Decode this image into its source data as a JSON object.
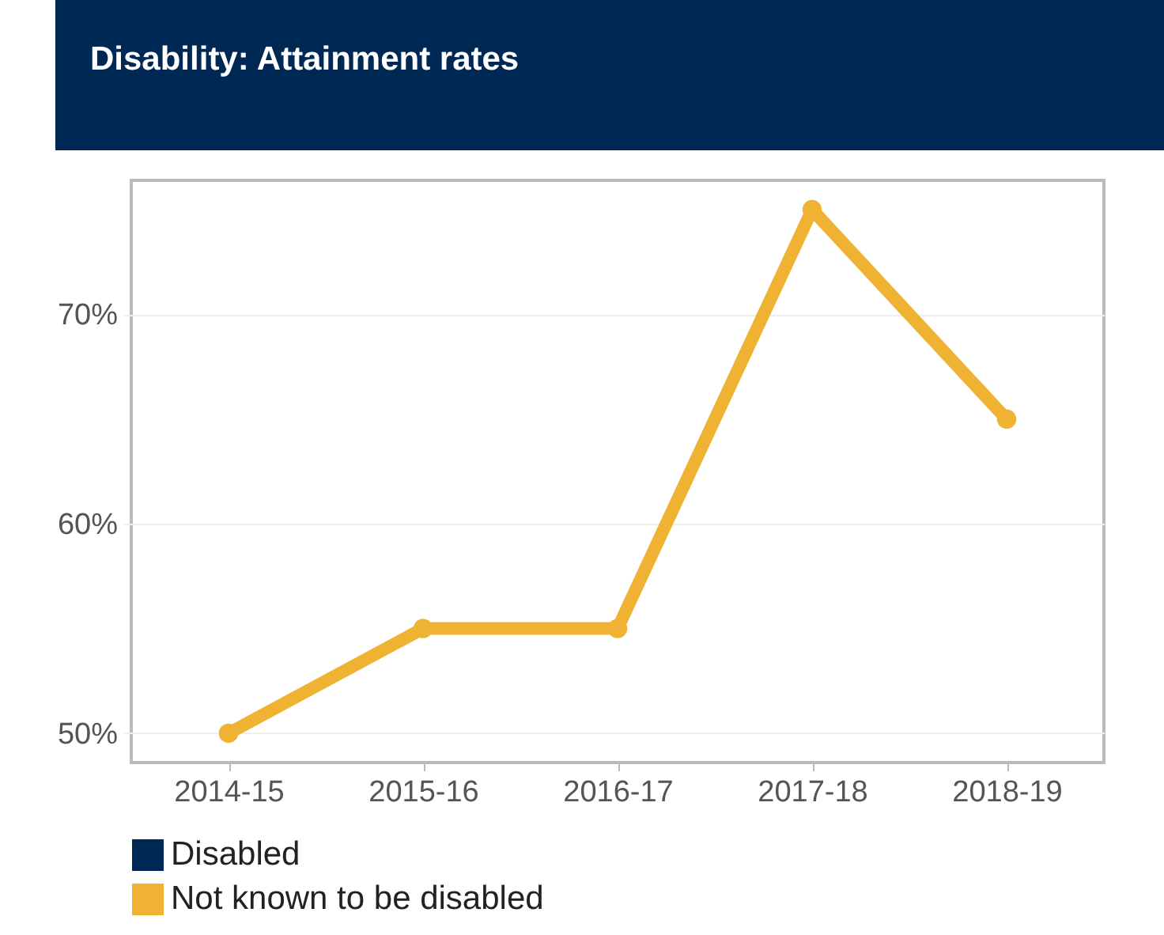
{
  "chart_data": {
    "type": "line",
    "title": "Disability: Attainment rates",
    "categories": [
      "2014-15",
      "2015-16",
      "2016-17",
      "2017-18",
      "2018-19"
    ],
    "series": [
      {
        "name": "Disabled",
        "color": "#002855",
        "values": [
          null,
          null,
          null,
          null,
          null
        ]
      },
      {
        "name": "Not known to be disabled",
        "color": "#f0b232",
        "values": [
          50,
          55,
          55,
          75,
          65
        ]
      }
    ],
    "ylim": [
      48.6,
      76.4
    ],
    "yticks": [
      {
        "value": 50,
        "label": "50%"
      },
      {
        "value": 60,
        "label": "60%"
      },
      {
        "value": 70,
        "label": "70%"
      }
    ],
    "grid": "y",
    "legend": "bottom",
    "marker": "circle",
    "line_style": "solid"
  }
}
